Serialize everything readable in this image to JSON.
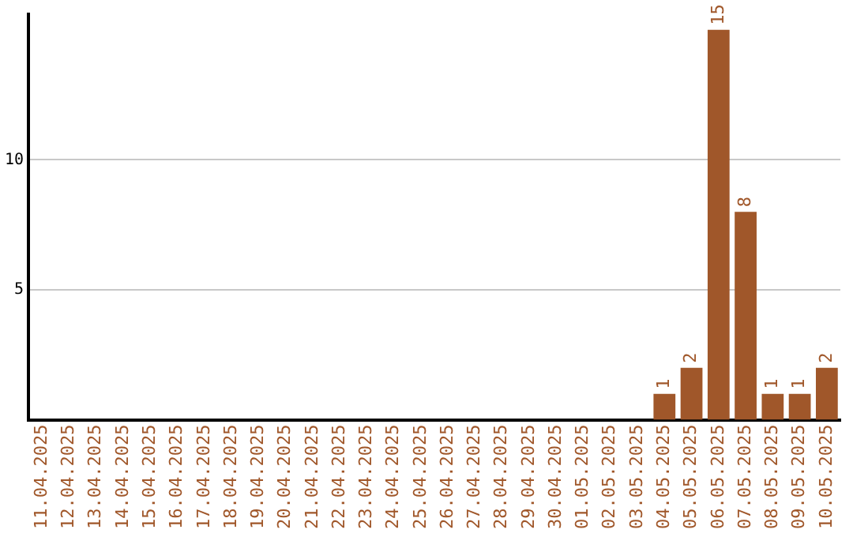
{
  "chart_data": {
    "type": "bar",
    "categories": [
      "11.04.2025",
      "12.04.2025",
      "13.04.2025",
      "14.04.2025",
      "15.04.2025",
      "16.04.2025",
      "17.04.2025",
      "18.04.2025",
      "19.04.2025",
      "20.04.2025",
      "21.04.2025",
      "22.04.2025",
      "23.04.2025",
      "24.04.2025",
      "25.04.2025",
      "26.04.2025",
      "27.04.2025",
      "28.04.2025",
      "29.04.2025",
      "30.04.2025",
      "01.05.2025",
      "02.05.2025",
      "03.05.2025",
      "04.05.2025",
      "05.05.2025",
      "06.05.2025",
      "07.05.2025",
      "08.05.2025",
      "09.05.2025",
      "10.05.2025"
    ],
    "values": [
      0,
      0,
      0,
      0,
      0,
      0,
      0,
      0,
      0,
      0,
      0,
      0,
      0,
      0,
      0,
      0,
      0,
      0,
      0,
      0,
      0,
      0,
      0,
      1,
      2,
      15,
      8,
      1,
      1,
      2
    ],
    "value_labels": [
      null,
      null,
      null,
      null,
      null,
      null,
      null,
      null,
      null,
      null,
      null,
      null,
      null,
      null,
      null,
      null,
      null,
      null,
      null,
      null,
      null,
      null,
      null,
      "1",
      "2",
      "15",
      "8",
      "1",
      "1",
      "2"
    ],
    "color": "#a0572a",
    "ylim": [
      0,
      15.6
    ],
    "yticks": [
      5,
      10
    ],
    "grid": "y",
    "legend": false
  }
}
